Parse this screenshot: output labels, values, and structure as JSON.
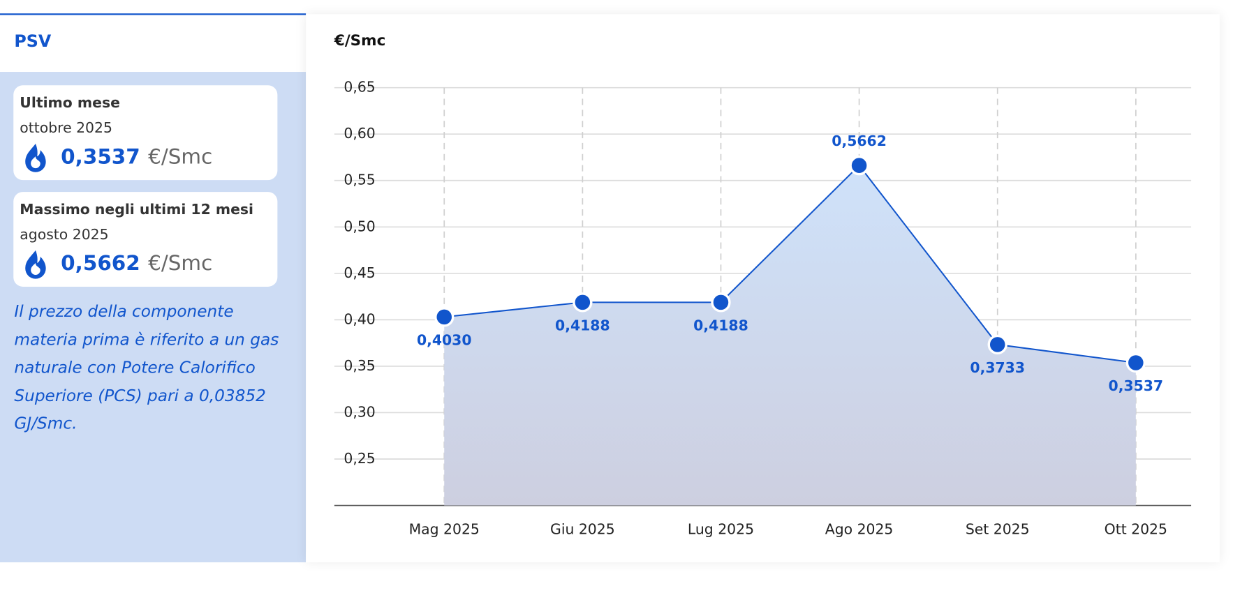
{
  "panel": {
    "title": "PSV",
    "cards": [
      {
        "label": "Ultimo mese",
        "date": "ottobre 2025",
        "value": "0,3537",
        "unit": "€/Smc"
      },
      {
        "label": "Massimo negli ultimi 12 mesi",
        "date": "agosto 2025",
        "value": "0,5662",
        "unit": "€/Smc"
      }
    ],
    "note": "Il prezzo della componente materia prima è riferito a un gas naturale con Potere Calorifico Superiore (PCS) pari a 0,03852 GJ/Smc."
  },
  "chart_data": {
    "type": "area",
    "title": "€/Smc",
    "categories": [
      "Mag 2025",
      "Giu 2025",
      "Lug 2025",
      "Ago 2025",
      "Set 2025",
      "Ott 2025"
    ],
    "series": [
      {
        "color": "#1155cc",
        "values": [
          0.403,
          0.4188,
          0.4188,
          0.5662,
          0.3733,
          0.3537
        ],
        "value_labels": [
          "0,4030",
          "0,4188",
          "0,4188",
          "0,5662",
          "0,3733",
          "0,3537"
        ]
      }
    ],
    "ylim": [
      0.2,
      0.65
    ],
    "yticks": [
      {
        "value": 0.25,
        "label": "0,25"
      },
      {
        "value": 0.3,
        "label": "0,30"
      },
      {
        "value": 0.35,
        "label": "0,35"
      },
      {
        "value": 0.4,
        "label": "0,40"
      },
      {
        "value": 0.45,
        "label": "0,45"
      },
      {
        "value": 0.5,
        "label": "0,50"
      },
      {
        "value": 0.55,
        "label": "0,55"
      },
      {
        "value": 0.6,
        "label": "0,60"
      },
      {
        "value": 0.65,
        "label": "0,65"
      }
    ],
    "grid": true
  }
}
